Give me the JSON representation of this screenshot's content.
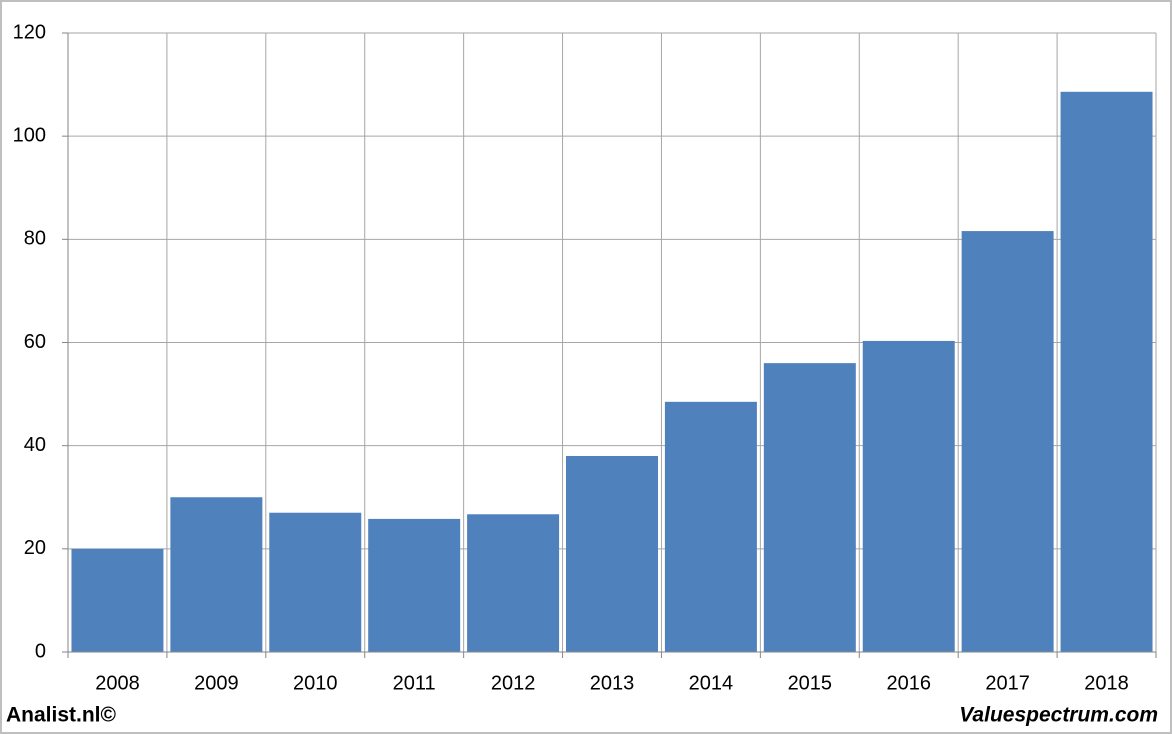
{
  "chart_data": {
    "type": "bar",
    "categories": [
      "2008",
      "2009",
      "2010",
      "2011",
      "2012",
      "2013",
      "2014",
      "2015",
      "2016",
      "2017",
      "2018"
    ],
    "values": [
      20.0,
      30.0,
      27.0,
      25.8,
      26.7,
      38.0,
      48.5,
      56.0,
      60.3,
      81.6,
      108.6
    ],
    "color": "#4f81bd",
    "ylim": [
      0,
      120
    ],
    "yticks": [
      0,
      20,
      40,
      60,
      80,
      100,
      120
    ],
    "grid": true,
    "annotations": [
      "Analist.nl©",
      "Valuespectrum.com"
    ]
  }
}
